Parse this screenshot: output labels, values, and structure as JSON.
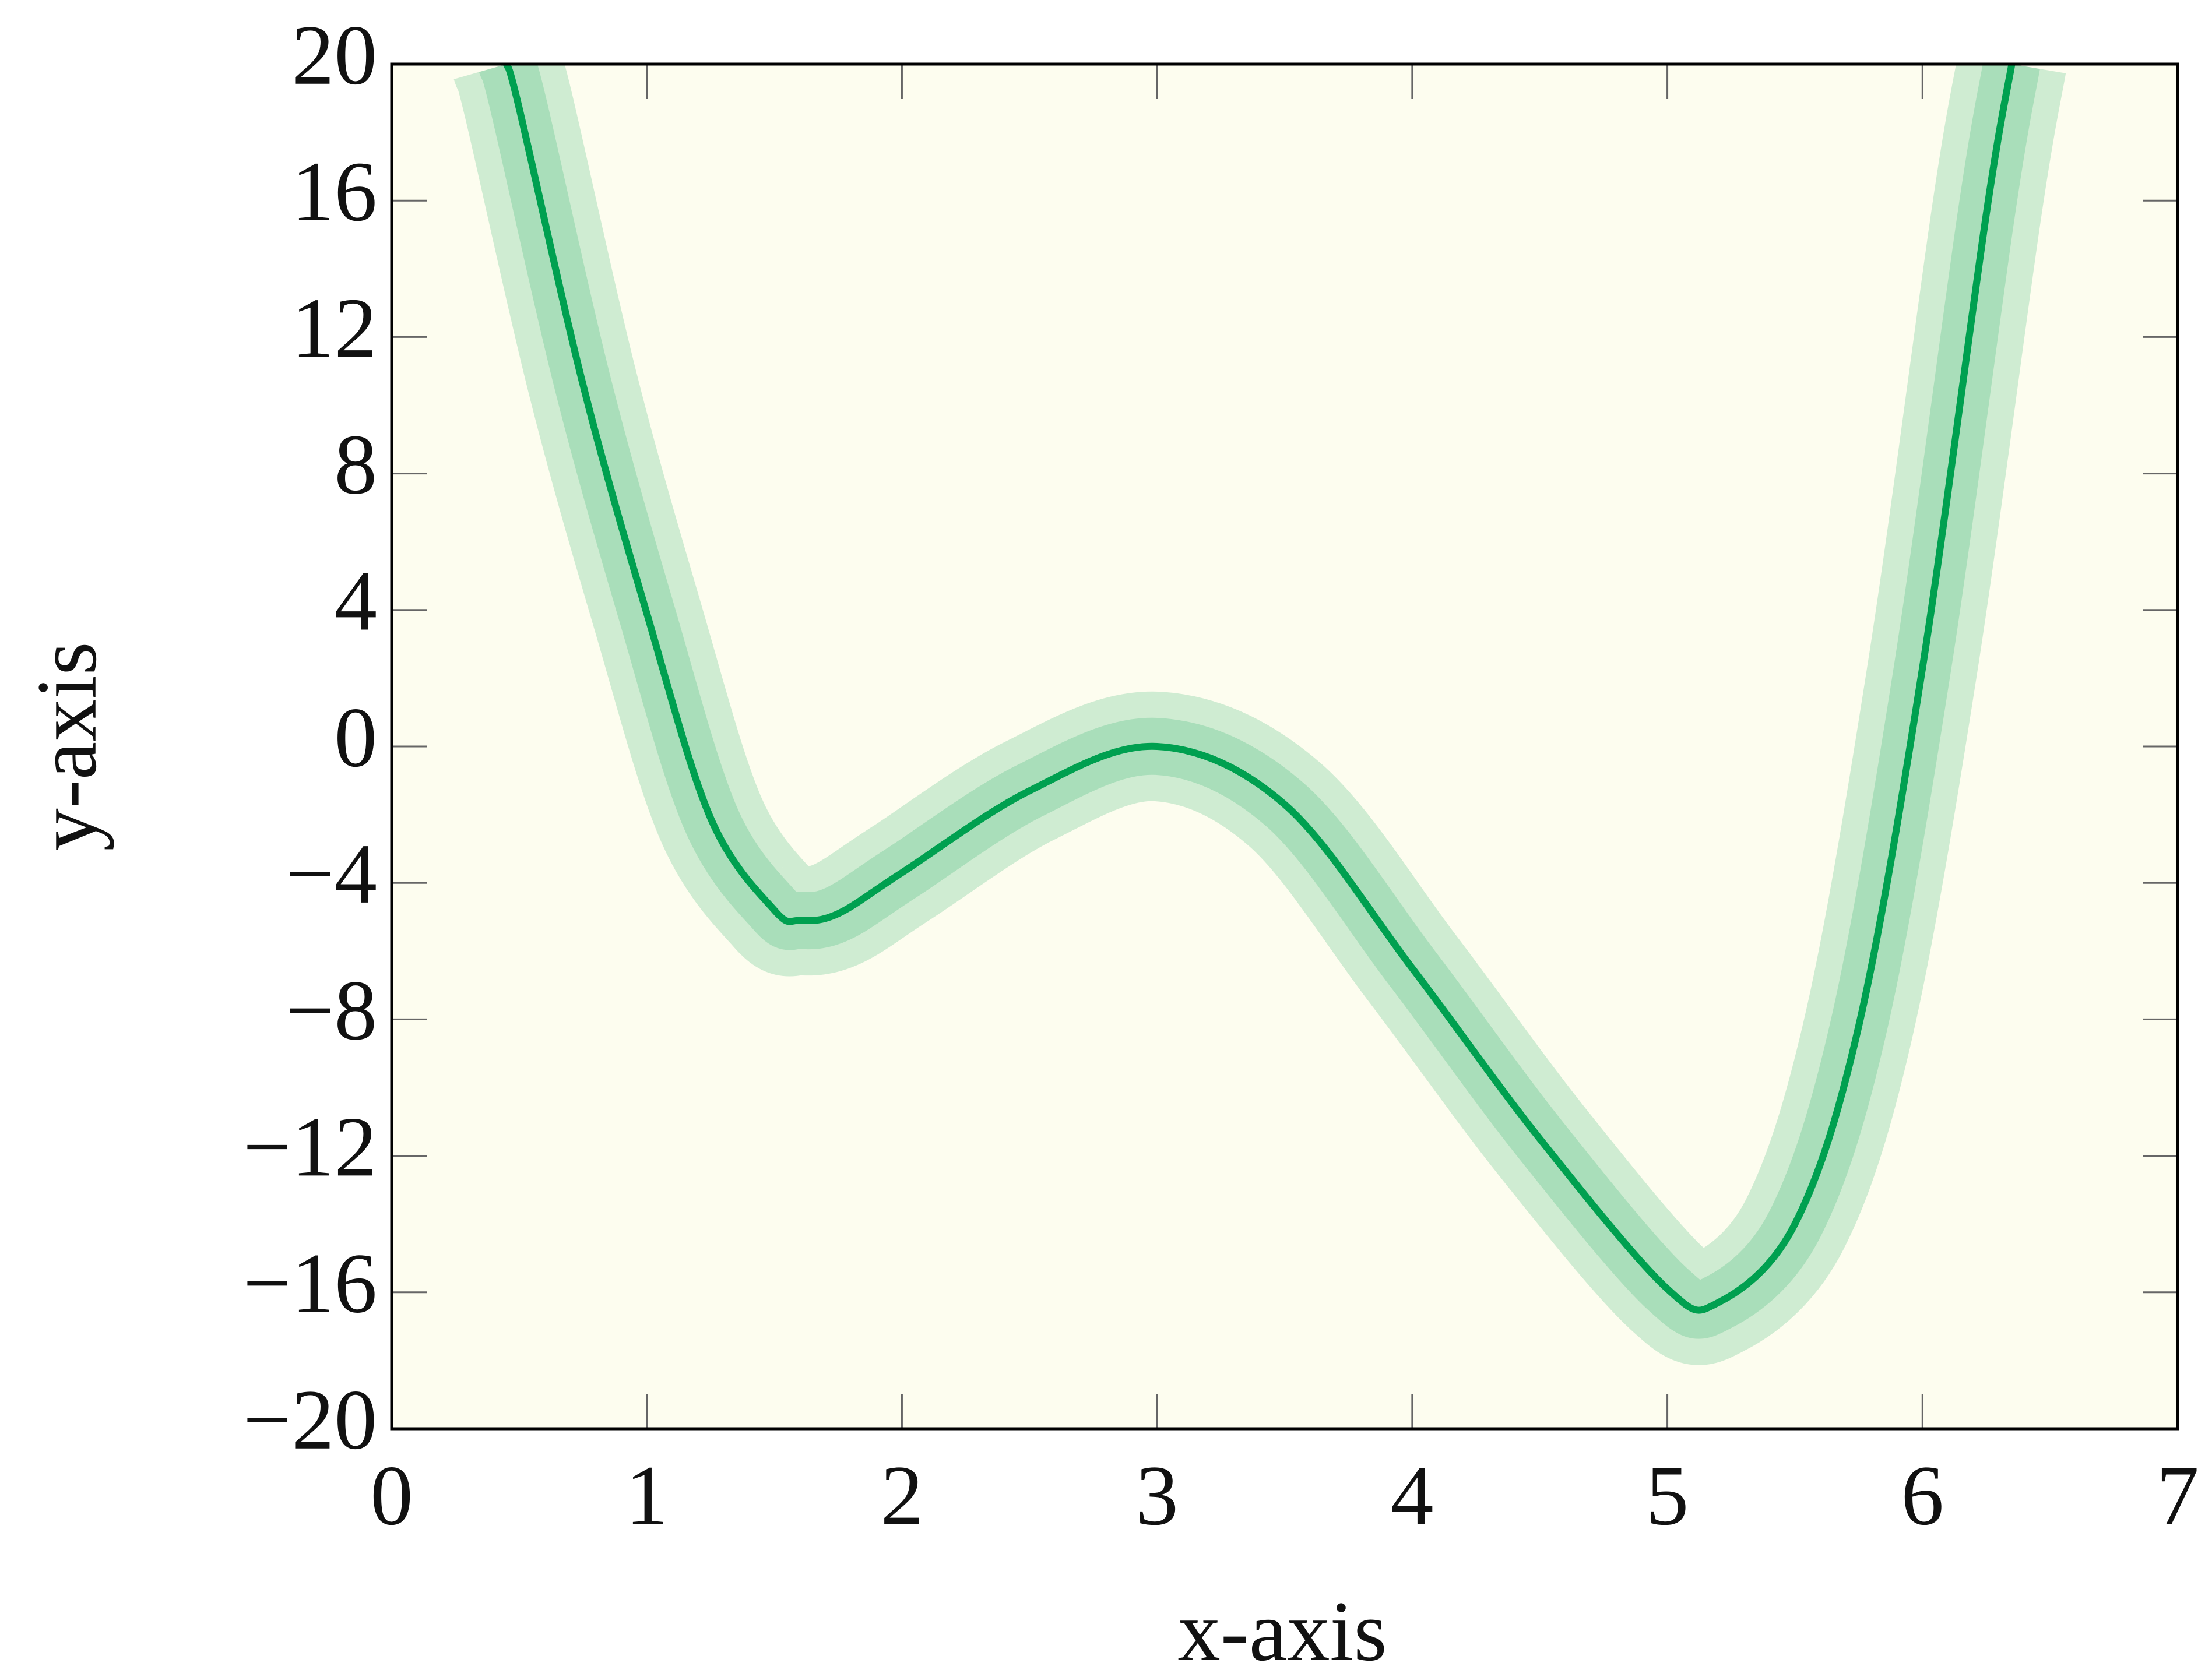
{
  "chart_data": {
    "type": "line",
    "x_label": "x-axis",
    "y_label": "y-axis",
    "x": [
      0.45,
      0.5,
      0.75,
      1,
      1.25,
      1.5,
      1.6,
      1.75,
      2,
      2.5,
      3,
      3.5,
      4,
      4.5,
      5,
      5.2,
      5.5,
      5.75,
      6,
      6.25,
      6.35
    ],
    "series": [
      {
        "color": "#00a050",
        "values": [
          20,
          18.7,
          10.6,
          3.9,
          -2.1,
          -4.8,
          -5.1,
          -4.9,
          -3.7,
          -1.3,
          0,
          -1.7,
          -6.5,
          -11.5,
          -15.9,
          -16.3,
          -14,
          -8.2,
          2.3,
          15.6,
          20
        ]
      }
    ],
    "xlim": [
      0,
      7
    ],
    "xticks": [
      0,
      1,
      2,
      3,
      4,
      5,
      6,
      7
    ],
    "ylim": [
      -20,
      20
    ],
    "yticks": [
      {
        "value": -20,
        "label": "−20"
      },
      {
        "value": -16,
        "label": "−16"
      },
      {
        "value": -12,
        "label": "−12"
      },
      {
        "value": -8,
        "label": "−8"
      },
      {
        "value": -4,
        "label": "−4"
      },
      0,
      4,
      8,
      12,
      16,
      20
    ],
    "background": "#fdfdef"
  }
}
